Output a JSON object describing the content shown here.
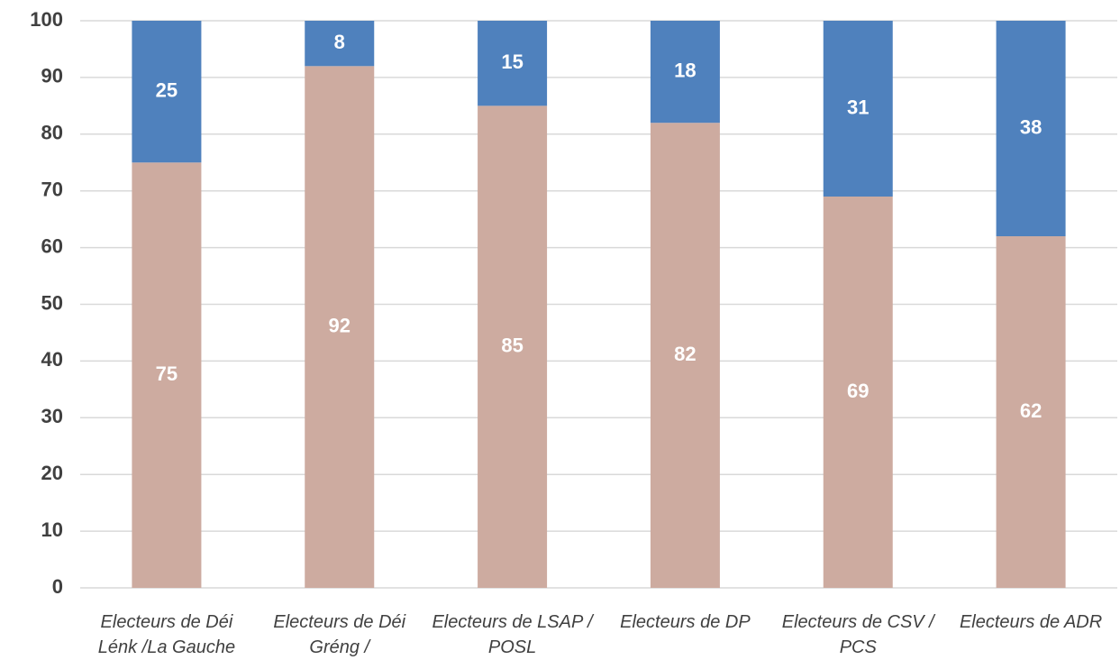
{
  "chart_data": {
    "type": "stacked_bar",
    "categories": [
      "Electeurs de Déi Lénk /La Gauche",
      "Electeurs de Déi Gréng /",
      "Electeurs de LSAP / POSL",
      "Electeurs de DP",
      "Electeurs de CSV / PCS",
      "Electeurs de ADR"
    ],
    "series": [
      {
        "color": "#cdaba0",
        "values": [
          75,
          92,
          85,
          82,
          69,
          62
        ]
      },
      {
        "color": "#4f81bd",
        "values": [
          25,
          8,
          15,
          18,
          31,
          38
        ]
      }
    ],
    "ylim": [
      0,
      100
    ],
    "yticks": [
      0,
      10,
      20,
      30,
      40,
      50,
      60,
      70,
      80,
      90,
      100
    ],
    "grid": true
  }
}
